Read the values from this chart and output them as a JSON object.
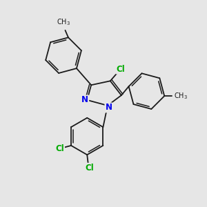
{
  "bg_color": "#e6e6e6",
  "bond_color": "#1a1a1a",
  "bond_width": 1.3,
  "N_color": "#0000ee",
  "Cl_color": "#00aa00",
  "figsize": [
    3.0,
    3.0
  ],
  "dpi": 100,
  "xlim": [
    0,
    10
  ],
  "ylim": [
    0,
    10
  ]
}
